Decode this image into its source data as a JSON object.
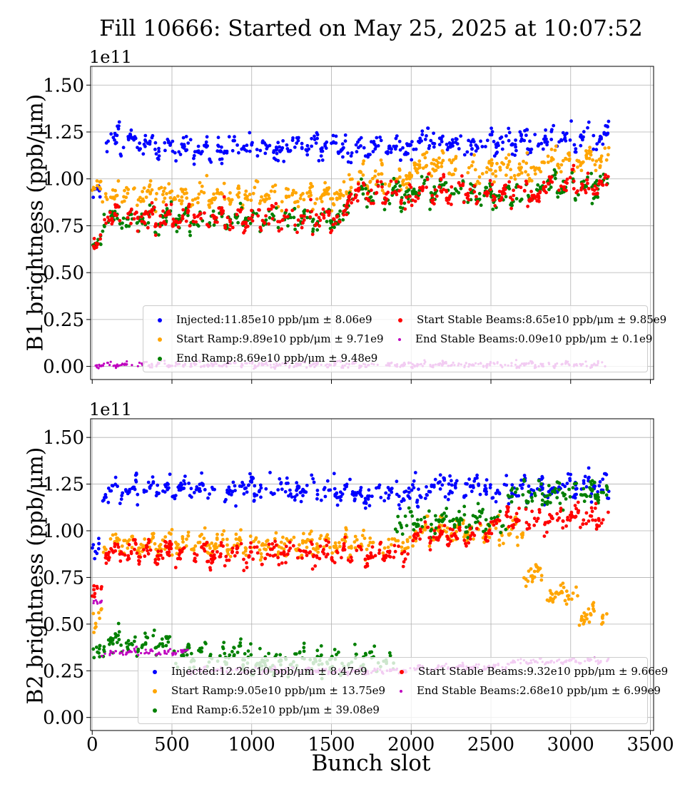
{
  "title": "Fill 10666: Started on May 25, 2025 at 10:07:52",
  "xlabel": "Bunch slot",
  "x_ticks": [
    "0",
    "500",
    "1000",
    "1500",
    "2000",
    "2500",
    "3000",
    "3500"
  ],
  "y_ticks": [
    "0.00",
    "0.25",
    "0.50",
    "0.75",
    "1.00",
    "1.25",
    "1.50"
  ],
  "exponent": "1e11",
  "colors": {
    "injected": "#0000ff",
    "start_ramp": "#ffa500",
    "end_ramp": "#008000",
    "start_stable": "#ff0000",
    "end_stable": "#bf00bf"
  },
  "chart_data": [
    {
      "type": "scatter",
      "ylabel": "B1 brightness (ppb/μm)",
      "xlim": [
        -10,
        3520
      ],
      "ylim": [
        -0.07,
        1.6
      ],
      "y_scale": 100000000000.0,
      "grid": true,
      "legend_position": "lower-right",
      "series": [
        {
          "name": "Injected:11.85e10 ppb/μm ± 8.06e9",
          "key": "injected",
          "segments": [
            [
              0,
              60,
              0.95
            ],
            [
              60,
              400,
              1.2
            ],
            [
              400,
              800,
              1.16
            ],
            [
              800,
              1200,
              1.17
            ],
            [
              1200,
              1600,
              1.18
            ],
            [
              1600,
              2000,
              1.17
            ],
            [
              2000,
              2400,
              1.2
            ],
            [
              2400,
              2800,
              1.2
            ],
            [
              2800,
              3240,
              1.22
            ]
          ]
        },
        {
          "name": "Start Ramp:9.89e10 ppb/μm ± 9.71e9",
          "key": "start_ramp",
          "segments": [
            [
              0,
              60,
              0.98
            ],
            [
              60,
              1600,
              0.91
            ],
            [
              1600,
              2000,
              1.0
            ],
            [
              2000,
              2400,
              1.08
            ],
            [
              2400,
              2800,
              1.05
            ],
            [
              2800,
              3240,
              1.1
            ]
          ]
        },
        {
          "name": "End Ramp:8.69e10 ppb/μm ± 9.48e9",
          "key": "end_ramp",
          "segments": [
            [
              0,
              60,
              0.68
            ],
            [
              60,
              1600,
              0.79
            ],
            [
              1600,
              2000,
              0.92
            ],
            [
              2000,
              2400,
              0.94
            ],
            [
              2400,
              2800,
              0.92
            ],
            [
              2800,
              3240,
              0.97
            ]
          ]
        },
        {
          "name": "Start Stable Beams:8.65e10 ppb/μm ± 9.85e9",
          "key": "start_stable",
          "segments": [
            [
              0,
              60,
              0.68
            ],
            [
              60,
              1600,
              0.79
            ],
            [
              1600,
              2000,
              0.92
            ],
            [
              2000,
              2400,
              0.94
            ],
            [
              2400,
              2800,
              0.92
            ],
            [
              2800,
              3240,
              0.97
            ]
          ]
        },
        {
          "name": "End Stable Beams:0.09e10 ppb/μm ± 0.1e9",
          "key": "end_stable",
          "segments": [
            [
              20,
              3240,
              0.01
            ]
          ]
        }
      ]
    },
    {
      "type": "scatter",
      "ylabel": "B2 brightness (ppb/μm)",
      "xlim": [
        -10,
        3520
      ],
      "ylim": [
        -0.07,
        1.6
      ],
      "y_scale": 100000000000.0,
      "grid": true,
      "legend_position": "lower-right",
      "series": [
        {
          "name": "Injected:12.26e10 ppb/μm ± 8.47e9",
          "key": "injected",
          "segments": [
            [
              0,
              60,
              0.92
            ],
            [
              60,
              500,
              1.22
            ],
            [
              500,
              900,
              1.23
            ],
            [
              900,
              1300,
              1.23
            ],
            [
              1300,
              1700,
              1.22
            ],
            [
              1700,
              2100,
              1.2
            ],
            [
              2100,
              2500,
              1.24
            ],
            [
              2500,
              2900,
              1.22
            ],
            [
              2900,
              3240,
              1.25
            ]
          ]
        },
        {
          "name": "Start Ramp:9.05e10 ppb/μm ± 13.75e9",
          "key": "start_ramp",
          "segments": [
            [
              0,
              60,
              0.55
            ],
            [
              60,
              2000,
              0.93
            ],
            [
              2000,
              2700,
              1.0
            ],
            [
              2700,
              2850,
              0.77
            ],
            [
              2850,
              3050,
              0.66
            ],
            [
              3050,
              3240,
              0.55
            ]
          ]
        },
        {
          "name": "End Ramp:6.52e10 ppb/μm ± 39.08e9",
          "key": "end_ramp",
          "segments": [
            [
              0,
              60,
              0.38
            ],
            [
              60,
              500,
              0.4
            ],
            [
              500,
              1000,
              0.34
            ],
            [
              1000,
              1900,
              0.3
            ],
            [
              1900,
              2600,
              1.05
            ],
            [
              2600,
              3240,
              1.2
            ]
          ]
        },
        {
          "name": "Start Stable Beams:9.32e10 ppb/μm ± 9.66e9",
          "key": "start_stable",
          "segments": [
            [
              0,
              60,
              0.7
            ],
            [
              60,
              2000,
              0.88
            ],
            [
              2000,
              2500,
              0.98
            ],
            [
              2500,
              3240,
              1.07
            ]
          ]
        },
        {
          "name": "End Stable Beams:2.68e10 ppb/μm ± 6.99e9",
          "key": "end_stable",
          "segments": [
            [
              0,
              60,
              0.62
            ],
            [
              60,
              600,
              0.35
            ],
            [
              600,
              2000,
              0.25
            ],
            [
              2000,
              2600,
              0.27
            ],
            [
              2600,
              3240,
              0.3
            ]
          ]
        }
      ]
    }
  ]
}
